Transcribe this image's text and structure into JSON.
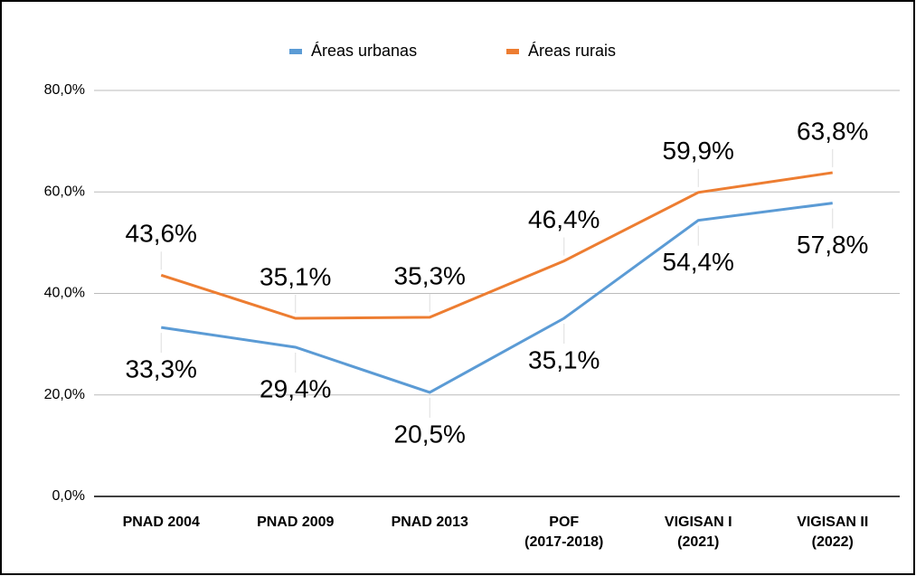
{
  "chart_data": {
    "type": "line",
    "categories": [
      "PNAD 2004",
      "PNAD 2009",
      "PNAD 2013",
      "POF\n(2017-2018)",
      "VIGISAN I\n(2021)",
      "VIGISAN II\n(2022)"
    ],
    "series": [
      {
        "name": "Áreas urbanas",
        "color": "#5b9bd5",
        "values": [
          33.3,
          29.4,
          20.5,
          35.1,
          54.4,
          57.8
        ],
        "value_labels": [
          "33,3%",
          "29,4%",
          "20,5%",
          "35,1%",
          "54,4%",
          "57,8%"
        ]
      },
      {
        "name": "Áreas rurais",
        "color": "#ed7d31",
        "values": [
          43.6,
          35.1,
          35.3,
          46.4,
          59.9,
          63.8
        ],
        "value_labels": [
          "43,6%",
          "35,1%",
          "35,3%",
          "46,4%",
          "59,9%",
          "63,8%"
        ]
      }
    ],
    "ylim": [
      0,
      80
    ],
    "yticks": [
      {
        "value": 0,
        "label": "0,0%"
      },
      {
        "value": 20,
        "label": "20,0%"
      },
      {
        "value": 40,
        "label": "40,0%"
      },
      {
        "value": 60,
        "label": "60,0%"
      },
      {
        "value": 80,
        "label": "80,0%"
      }
    ],
    "grid": true,
    "legend": "top"
  }
}
